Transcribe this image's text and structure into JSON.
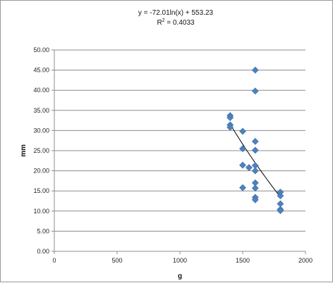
{
  "chart_data": {
    "type": "scatter",
    "title": "",
    "xlabel": "g",
    "ylabel": "mm",
    "xlim": [
      0,
      2000
    ],
    "ylim": [
      0,
      50
    ],
    "grid": "horizontal",
    "legend": "none",
    "x_ticks": [
      "0",
      "500",
      "1000",
      "1500",
      "2000"
    ],
    "y_ticks": [
      "0.00",
      "5.00",
      "10.00",
      "15.00",
      "20.00",
      "25.00",
      "30.00",
      "35.00",
      "40.00",
      "45.00",
      "50.00"
    ],
    "annotations": {
      "equation": "y = -72.01ln(x) + 553.23",
      "r_squared_prefix": "R",
      "r_squared_exp": "2",
      "r_squared_value": " = 0.4033"
    },
    "series": [
      {
        "marker": "diamond",
        "color": "#4f81bd",
        "points": [
          [
            1400,
            33.7
          ],
          [
            1400,
            33.2
          ],
          [
            1400,
            31.4
          ],
          [
            1400,
            30.8
          ],
          [
            1500,
            29.8
          ],
          [
            1500,
            25.5
          ],
          [
            1500,
            21.4
          ],
          [
            1500,
            15.8
          ],
          [
            1550,
            20.8
          ],
          [
            1600,
            45.0
          ],
          [
            1600,
            39.8
          ],
          [
            1600,
            27.3
          ],
          [
            1600,
            25.1
          ],
          [
            1600,
            21.3
          ],
          [
            1600,
            20.0
          ],
          [
            1600,
            17.0
          ],
          [
            1600,
            15.7
          ],
          [
            1600,
            13.4
          ],
          [
            1600,
            12.8
          ],
          [
            1800,
            14.7
          ],
          [
            1800,
            13.8
          ],
          [
            1800,
            11.8
          ],
          [
            1800,
            10.4
          ],
          [
            1800,
            10.1
          ]
        ]
      }
    ],
    "trendline": {
      "type": "logarithmic",
      "a": -72.01,
      "b": 553.23,
      "x_range": [
        1400,
        1800
      ],
      "color": "#000000"
    }
  }
}
